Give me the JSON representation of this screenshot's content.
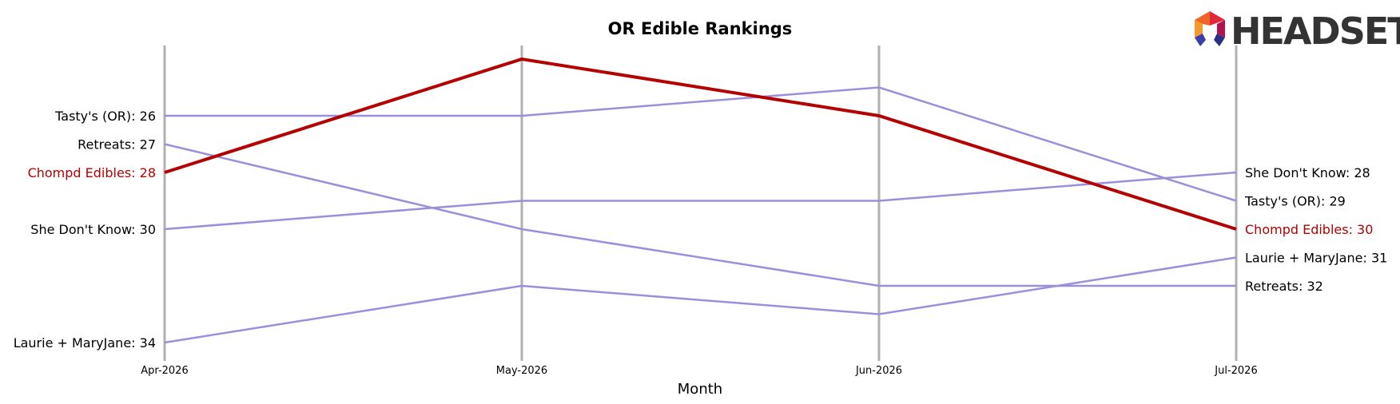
{
  "chart_data": {
    "type": "line",
    "title": "OR Edible Rankings",
    "xlabel": "Month",
    "ylabel": "",
    "x": [
      "Apr-2026",
      "May-2026",
      "Jun-2026",
      "Jul-2026"
    ],
    "y_inverted": true,
    "ylim": [
      35,
      23
    ],
    "grid": "vertical lines at each month",
    "highlight_color": "#b30000",
    "series_color": "#9b8fdc",
    "axis_line_color": "#b0b0b0",
    "series": [
      {
        "name": "Tasty's (OR)",
        "values": [
          26,
          26,
          25,
          29
        ],
        "highlight": false
      },
      {
        "name": "Retreats",
        "values": [
          27,
          30,
          32,
          32
        ],
        "highlight": false
      },
      {
        "name": "She Don't Know",
        "values": [
          30,
          29,
          29,
          28
        ],
        "highlight": false
      },
      {
        "name": "Laurie + MaryJane",
        "values": [
          34,
          32,
          33,
          31
        ],
        "highlight": false
      },
      {
        "name": "Chompd Edibles",
        "values": [
          28,
          24,
          26,
          30
        ],
        "highlight": true
      }
    ],
    "start_labels": [
      "Tasty's (OR): 26",
      "Retreats: 27",
      "Chompd Edibles: 28",
      "She Don't Know: 30",
      "Laurie + MaryJane: 34"
    ],
    "end_labels": [
      "She Don't Know: 28",
      "Tasty's (OR): 29",
      "Chompd Edibles: 30",
      "Laurie + MaryJane: 31",
      "Retreats: 32"
    ]
  },
  "logo": {
    "text": "HEADSET",
    "icon": "headset-hexagon-icon"
  }
}
